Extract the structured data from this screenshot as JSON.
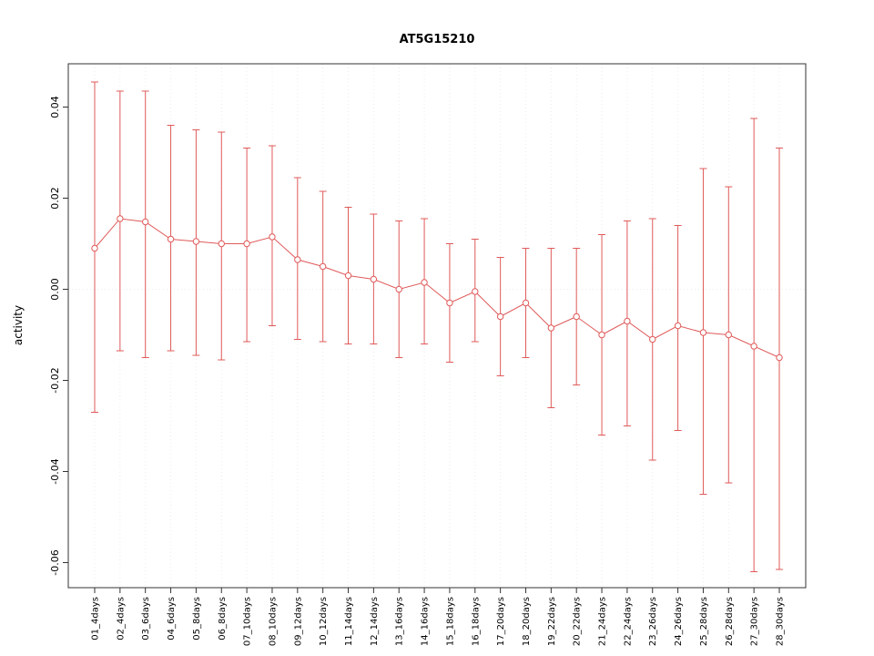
{
  "page": {
    "background": "#ffffff"
  },
  "chart_data": {
    "type": "line",
    "title": "AT5G15210",
    "ylabel": "activity",
    "xlabel": "",
    "legend": "none",
    "grid": "dotted-light",
    "series_color": "#e05a5a",
    "grid_color": "#ececec",
    "axis_color": "#333333",
    "tick_text_color": "#000000",
    "ylim": [
      -0.0655,
      0.0495
    ],
    "yticks": [
      -0.06,
      -0.04,
      -0.02,
      0,
      0.02,
      0.04
    ],
    "categories": [
      "01_4days",
      "02_4days",
      "03_6days",
      "04_6days",
      "05_8days",
      "06_8days",
      "07_10days",
      "08_10days",
      "09_12days",
      "10_12days",
      "11_14days",
      "12_14days",
      "13_16days",
      "14_16days",
      "15_18days",
      "16_18days",
      "17_20days",
      "18_20days",
      "19_22days",
      "20_22days",
      "21_24days",
      "22_24days",
      "23_26days",
      "24_26days",
      "25_28days",
      "26_28days",
      "27_30days",
      "28_30days"
    ],
    "series": [
      {
        "name": "activity_mean",
        "values": [
          0.009,
          0.0155,
          0.0148,
          0.011,
          0.0105,
          0.01,
          0.01,
          0.0115,
          0.0065,
          0.005,
          0.003,
          0.0022,
          0.0,
          0.0015,
          -0.003,
          -0.0005,
          -0.006,
          -0.003,
          -0.0085,
          -0.006,
          -0.01,
          -0.007,
          -0.011,
          -0.008,
          -0.0095,
          -0.01,
          -0.0125,
          -0.015
        ]
      },
      {
        "name": "errorbar_upper",
        "values": [
          0.0455,
          0.0435,
          0.0435,
          0.036,
          0.035,
          0.0345,
          0.031,
          0.0315,
          0.0245,
          0.0215,
          0.018,
          0.0165,
          0.015,
          0.0155,
          0.01,
          0.011,
          0.007,
          0.009,
          0.009,
          0.009,
          0.012,
          0.015,
          0.0155,
          0.014,
          0.0265,
          0.0225,
          0.0375,
          0.031
        ]
      },
      {
        "name": "errorbar_lower",
        "values": [
          -0.027,
          -0.0135,
          -0.015,
          -0.0135,
          -0.0145,
          -0.0155,
          -0.0115,
          -0.008,
          -0.011,
          -0.0115,
          -0.012,
          -0.012,
          -0.015,
          -0.012,
          -0.016,
          -0.0115,
          -0.019,
          -0.015,
          -0.026,
          -0.021,
          -0.032,
          -0.03,
          -0.0375,
          -0.031,
          -0.045,
          -0.0425,
          -0.062,
          -0.0615
        ]
      }
    ]
  }
}
